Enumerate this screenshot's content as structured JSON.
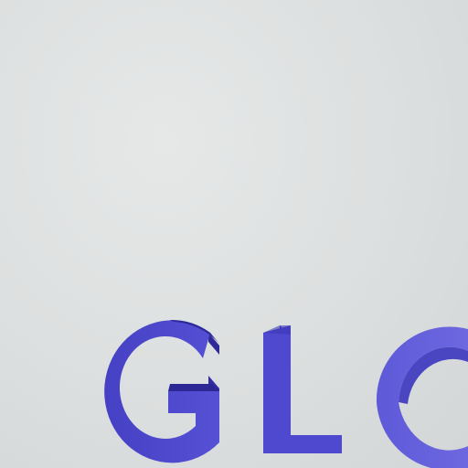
{
  "scene": {
    "text": "GLO",
    "letters": [
      "G",
      "L",
      "O"
    ],
    "colors": {
      "background": "#dde0e0",
      "letter_front": "#4a45c9",
      "letter_side": "#3530a8",
      "letter_front_light": "#6863dc",
      "letter_side_light": "#4b47c0"
    }
  }
}
